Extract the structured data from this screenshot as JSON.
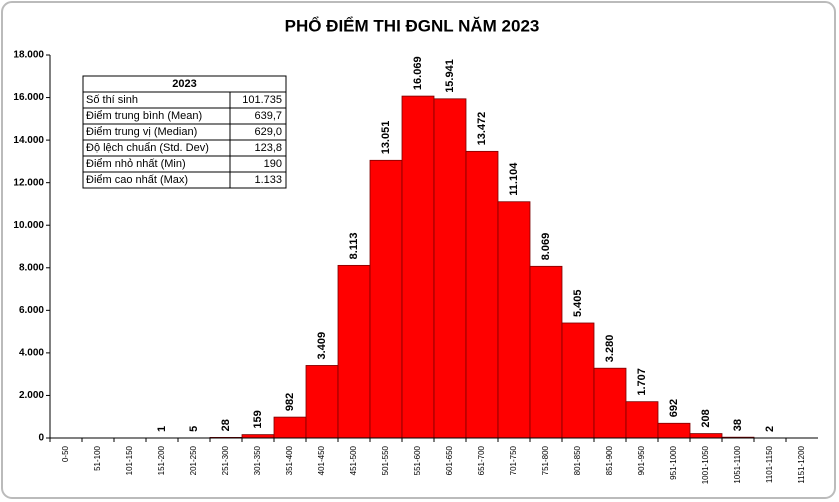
{
  "chart_data": {
    "type": "bar",
    "title": "PHỔ ĐIỂM THI ĐGNL NĂM 2023",
    "categories": [
      "0-50",
      "51-100",
      "101-150",
      "151-200",
      "201-250",
      "251-300",
      "301-350",
      "351-400",
      "401-450",
      "451-500",
      "501-550",
      "551-600",
      "601-650",
      "651-700",
      "701-750",
      "751-800",
      "801-850",
      "851-900",
      "901-950",
      "951-1000",
      "1001-1050",
      "1051-1100",
      "1101-1150",
      "1151-1200"
    ],
    "values": [
      null,
      null,
      null,
      1,
      5,
      28,
      159,
      982,
      3409,
      8113,
      13051,
      16069,
      15941,
      13472,
      11104,
      8069,
      5405,
      3280,
      1707,
      692,
      208,
      38,
      2,
      null
    ],
    "value_labels": [
      null,
      null,
      null,
      "1",
      "5",
      "28",
      "159",
      "982",
      "3.409",
      "8.113",
      "13.051",
      "16.069",
      "15.941",
      "13.472",
      "11.104",
      "8.069",
      "5.405",
      "3.280",
      "1.707",
      "692",
      "208",
      "38",
      "2",
      null
    ],
    "color": "#ff0000",
    "ylim": [
      0,
      18000
    ],
    "yticks": [
      0,
      {
        "value": 2000,
        "label": "2.000"
      },
      {
        "value": 4000,
        "label": "4.000"
      },
      {
        "value": 6000,
        "label": "6.000"
      },
      {
        "value": 8000,
        "label": "8.000"
      },
      {
        "value": 10000,
        "label": "10.000"
      },
      {
        "value": 12000,
        "label": "12.000"
      },
      {
        "value": 14000,
        "label": "14.000"
      },
      {
        "value": 16000,
        "label": "16.000"
      },
      {
        "value": 18000,
        "label": "18.000"
      }
    ],
    "grid": false,
    "table": {
      "title": "2023",
      "rows": [
        [
          "Số thí sinh",
          "101.735"
        ],
        [
          "Điểm trung bình (Mean)",
          "639,7"
        ],
        [
          "Điểm trung vị (Median)",
          "629,0"
        ],
        [
          "Độ lệch chuẩn (Std. Dev)",
          "123,8"
        ],
        [
          "Điểm nhỏ nhất (Min)",
          "190"
        ],
        [
          "Điểm cao nhất (Max)",
          "1.133"
        ]
      ]
    }
  }
}
